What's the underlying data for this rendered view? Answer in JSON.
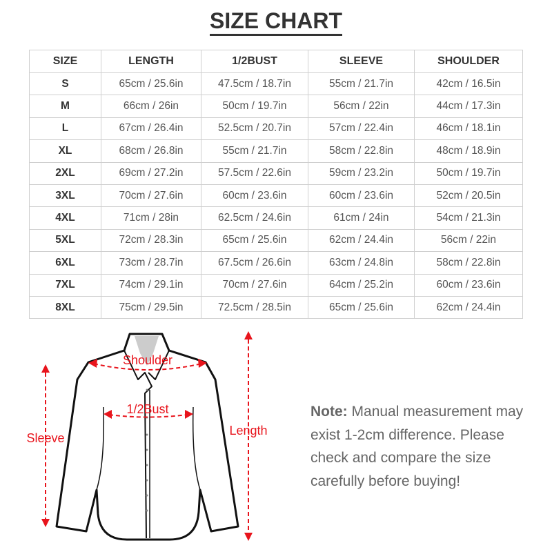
{
  "title": "SIZE CHART",
  "table": {
    "headers": [
      "SIZE",
      "LENGTH",
      "1/2BUST",
      "SLEEVE",
      "SHOULDER"
    ],
    "rows": [
      [
        "S",
        "65cm / 25.6in",
        "47.5cm / 18.7in",
        "55cm / 21.7in",
        "42cm / 16.5in"
      ],
      [
        "M",
        "66cm / 26in",
        "50cm / 19.7in",
        "56cm / 22in",
        "44cm / 17.3in"
      ],
      [
        "L",
        "67cm / 26.4in",
        "52.5cm / 20.7in",
        "57cm / 22.4in",
        "46cm / 18.1in"
      ],
      [
        "XL",
        "68cm / 26.8in",
        "55cm / 21.7in",
        "58cm / 22.8in",
        "48cm / 18.9in"
      ],
      [
        "2XL",
        "69cm / 27.2in",
        "57.5cm / 22.6in",
        "59cm / 23.2in",
        "50cm / 19.7in"
      ],
      [
        "3XL",
        "70cm / 27.6in",
        "60cm / 23.6in",
        "60cm / 23.6in",
        "52cm / 20.5in"
      ],
      [
        "4XL",
        "71cm / 28in",
        "62.5cm / 24.6in",
        "61cm / 24in",
        "54cm / 21.3in"
      ],
      [
        "5XL",
        "72cm / 28.3in",
        "65cm / 25.6in",
        "62cm / 24.4in",
        "56cm / 22in"
      ],
      [
        "6XL",
        "73cm / 28.7in",
        "67.5cm / 26.6in",
        "63cm / 24.8in",
        "58cm / 22.8in"
      ],
      [
        "7XL",
        "74cm / 29.1in",
        "70cm / 27.6in",
        "64cm / 25.2in",
        "60cm / 23.6in"
      ],
      [
        "8XL",
        "75cm / 29.5in",
        "72.5cm / 28.5in",
        "65cm / 25.6in",
        "62cm / 24.4in"
      ]
    ]
  },
  "diagram": {
    "labels": {
      "shoulder": "Shoulder",
      "bust": "1/2Bust",
      "sleeve": "Sleeve",
      "length": "Length"
    },
    "arrow_color": "#e8141c"
  },
  "note": {
    "label": "Note:",
    "text": "Manual measurement may exist 1-2cm difference. Please check and compare the size carefully before buying!"
  }
}
